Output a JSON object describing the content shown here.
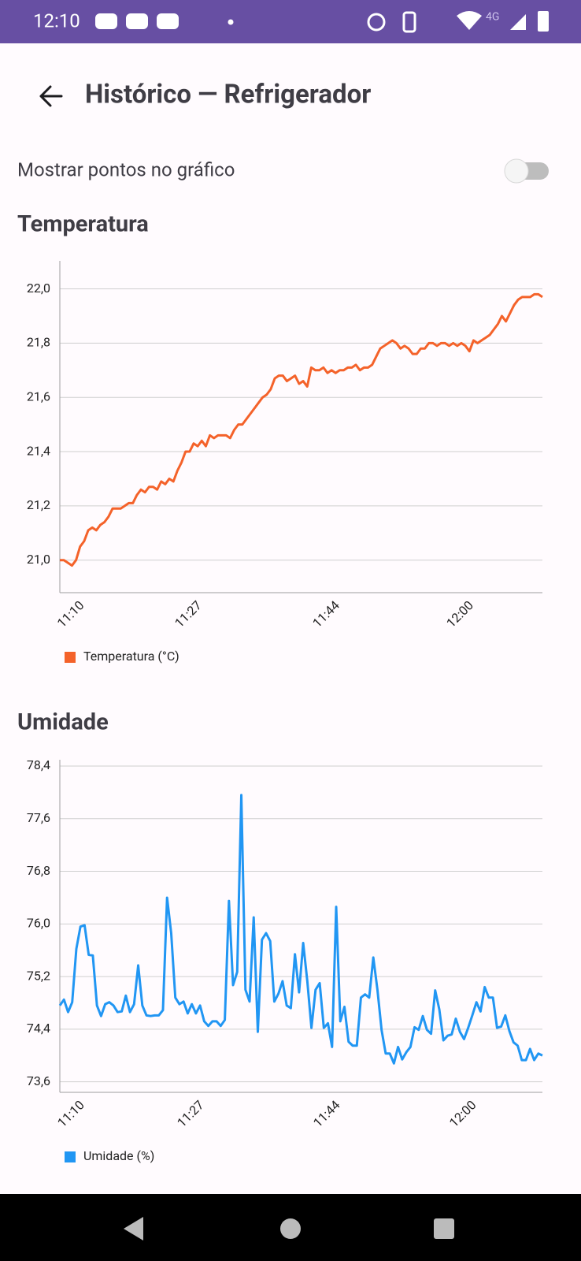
{
  "status_bar": {
    "time": "12:10",
    "network": "4G"
  },
  "header": {
    "title": "Histórico — Refrigerador"
  },
  "toggle": {
    "label": "Mostrar pontos no gráfico",
    "checked": false
  },
  "chart_data": [
    {
      "type": "line",
      "title": "Temperatura",
      "categories": [
        null,
        null,
        null,
        null,
        "11:10",
        null,
        null,
        null,
        null,
        null,
        null,
        null,
        null,
        null,
        null,
        null,
        null,
        null,
        null,
        null,
        null,
        null,
        null,
        null,
        null,
        null,
        null,
        null,
        null,
        null,
        null,
        null,
        null,
        "11:27",
        null,
        null,
        null,
        null,
        null,
        null,
        null,
        null,
        null,
        null,
        null,
        null,
        null,
        null,
        null,
        null,
        null,
        null,
        null,
        null,
        null,
        null,
        null,
        null,
        null,
        null,
        null,
        null,
        null,
        null,
        null,
        null,
        null,
        "11:44",
        null,
        null,
        null,
        null,
        null,
        null,
        null,
        null,
        null,
        null,
        null,
        null,
        null,
        null,
        null,
        null,
        null,
        null,
        null,
        null,
        null,
        null,
        null,
        null,
        null,
        null,
        null,
        null,
        null,
        null,
        null,
        null,
        "12:00",
        null,
        null,
        null,
        null,
        null,
        null,
        null,
        null,
        null,
        null,
        null,
        null,
        null,
        null,
        null,
        null,
        null,
        null,
        null
      ],
      "series": [
        {
          "name": "Temperatura (°C)",
          "color": "#f4622a",
          "values": [
            21.0,
            21.0,
            20.99,
            20.98,
            21.0,
            21.05,
            21.07,
            21.11,
            21.12,
            21.11,
            21.13,
            21.14,
            21.16,
            21.19,
            21.19,
            21.19,
            21.2,
            21.21,
            21.21,
            21.24,
            21.26,
            21.25,
            21.27,
            21.27,
            21.26,
            21.29,
            21.28,
            21.3,
            21.29,
            21.33,
            21.36,
            21.4,
            21.4,
            21.43,
            21.42,
            21.44,
            21.42,
            21.46,
            21.45,
            21.46,
            21.46,
            21.46,
            21.45,
            21.48,
            21.5,
            21.5,
            21.52,
            21.54,
            21.56,
            21.58,
            21.6,
            21.61,
            21.63,
            21.67,
            21.68,
            21.68,
            21.66,
            21.67,
            21.68,
            21.65,
            21.66,
            21.64,
            21.71,
            21.7,
            21.7,
            21.71,
            21.69,
            21.7,
            21.69,
            21.7,
            21.7,
            21.71,
            21.71,
            21.72,
            21.7,
            21.71,
            21.71,
            21.72,
            21.75,
            21.78,
            21.79,
            21.8,
            21.81,
            21.8,
            21.78,
            21.79,
            21.78,
            21.76,
            21.76,
            21.78,
            21.78,
            21.8,
            21.8,
            21.79,
            21.8,
            21.8,
            21.79,
            21.8,
            21.79,
            21.8,
            21.79,
            21.77,
            21.81,
            21.8,
            21.81,
            21.82,
            21.83,
            21.85,
            21.87,
            21.9,
            21.88,
            21.91,
            21.94,
            21.96,
            21.97,
            21.97,
            21.97,
            21.98,
            21.98,
            21.97
          ]
        }
      ],
      "ylim": [
        20.88,
        22.08
      ],
      "yticks": [
        {
          "value": 21.0,
          "label": "21,0"
        },
        {
          "value": 21.2,
          "label": "21,2"
        },
        {
          "value": 21.4,
          "label": "21,4"
        },
        {
          "value": 21.6,
          "label": "21,6"
        },
        {
          "value": 21.8,
          "label": "21,8"
        },
        {
          "value": 22.0,
          "label": "22,0"
        }
      ],
      "grid": true
    },
    {
      "type": "line",
      "title": "Umidade",
      "categories": [
        null,
        null,
        null,
        null,
        "11:10",
        null,
        null,
        null,
        null,
        null,
        null,
        null,
        null,
        null,
        null,
        null,
        null,
        null,
        null,
        null,
        null,
        null,
        null,
        null,
        null,
        null,
        null,
        null,
        null,
        null,
        null,
        null,
        null,
        "11:27",
        null,
        null,
        null,
        null,
        null,
        null,
        null,
        null,
        null,
        null,
        null,
        null,
        null,
        null,
        null,
        null,
        null,
        null,
        null,
        null,
        null,
        null,
        null,
        null,
        null,
        null,
        null,
        null,
        null,
        null,
        null,
        null,
        "11:44",
        null,
        null,
        null,
        null,
        null,
        null,
        null,
        null,
        null,
        null,
        null,
        null,
        null,
        null,
        null,
        null,
        null,
        null,
        null,
        null,
        null,
        null,
        null,
        null,
        null,
        null,
        null,
        null,
        null,
        null,
        null,
        null,
        "12:00",
        null,
        null,
        null,
        null,
        null,
        null,
        null,
        null,
        null,
        null,
        null,
        null,
        null,
        null,
        null,
        null,
        null,
        null
      ],
      "series": [
        {
          "name": "Umidade (%)",
          "color": "#2196f3",
          "values": [
            74.76,
            74.85,
            74.66,
            74.81,
            75.62,
            75.96,
            75.98,
            75.53,
            75.52,
            74.76,
            74.6,
            74.78,
            74.81,
            74.76,
            74.66,
            74.67,
            74.91,
            74.66,
            74.78,
            75.37,
            74.76,
            74.61,
            74.6,
            74.61,
            74.61,
            74.69,
            76.4,
            75.86,
            74.88,
            74.78,
            74.82,
            74.64,
            74.78,
            74.64,
            74.76,
            74.52,
            74.45,
            74.52,
            74.52,
            74.45,
            74.54,
            76.35,
            75.07,
            75.27,
            77.96,
            75.0,
            74.82,
            76.1,
            74.36,
            75.76,
            75.86,
            75.74,
            74.82,
            74.94,
            75.13,
            74.76,
            74.72,
            75.54,
            74.96,
            75.71,
            75.13,
            74.42,
            75.0,
            75.1,
            74.42,
            74.49,
            74.13,
            76.26,
            74.52,
            74.74,
            74.21,
            74.15,
            74.15,
            74.88,
            74.93,
            74.88,
            75.49,
            75.0,
            74.39,
            74.03,
            74.03,
            73.88,
            74.13,
            73.94,
            74.05,
            74.13,
            74.43,
            74.39,
            74.6,
            74.39,
            74.33,
            74.99,
            74.7,
            74.23,
            74.3,
            74.32,
            74.56,
            74.36,
            74.25,
            74.42,
            74.61,
            74.81,
            74.67,
            75.04,
            74.88,
            74.88,
            74.42,
            74.44,
            74.61,
            74.37,
            74.2,
            74.15,
            73.93,
            73.93,
            74.1,
            73.93,
            74.03,
            74.0
          ]
        }
      ],
      "ylim": [
        73.44,
        78.4
      ],
      "yticks": [
        {
          "value": 73.6,
          "label": "73,6"
        },
        {
          "value": 74.4,
          "label": "74,4"
        },
        {
          "value": 75.2,
          "label": "75,2"
        },
        {
          "value": 76.0,
          "label": "76,0"
        },
        {
          "value": 76.8,
          "label": "76,8"
        },
        {
          "value": 77.6,
          "label": "77,6"
        },
        {
          "value": 78.4,
          "label": "78,4"
        }
      ],
      "grid": true
    }
  ]
}
